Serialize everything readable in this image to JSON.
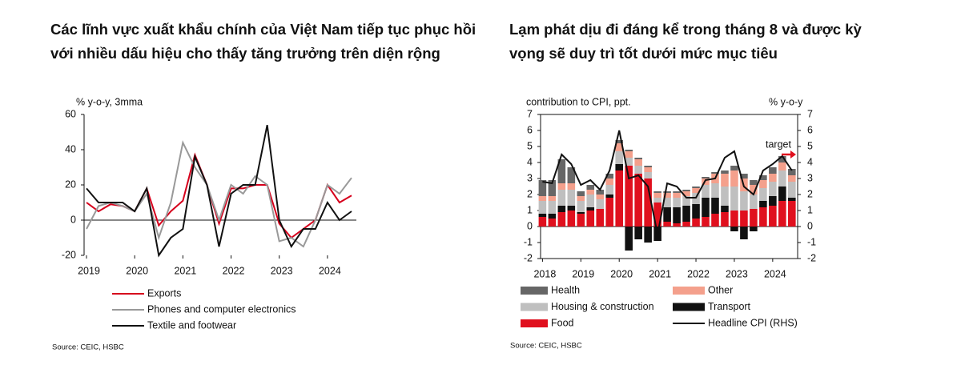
{
  "chart_data": [
    {
      "type": "line",
      "title": "Các lĩnh vực xuất khẩu chính của Việt Nam tiếp tục phục hồi với nhiều dấu hiệu cho thấy tăng trưởng trên diện rộng",
      "y_label": "% y-o-y, 3mma",
      "source": "Source: CEIC, HSBC",
      "x": [
        2019,
        2019.25,
        2019.5,
        2019.75,
        2020,
        2020.25,
        2020.5,
        2020.75,
        2021,
        2021.25,
        2021.5,
        2021.75,
        2022,
        2022.25,
        2022.5,
        2022.75,
        2023,
        2023.25,
        2023.5,
        2023.75,
        2024,
        2024.25,
        2024.5
      ],
      "xlim": [
        2018.95,
        2024.6
      ],
      "xticks": [
        2019,
        2020,
        2021,
        2022,
        2023,
        2024
      ],
      "ylim": [
        -20,
        60
      ],
      "yticks": [
        -20,
        0,
        20,
        40,
        60
      ],
      "series": [
        {
          "name": "Exports",
          "color": "#d6001c",
          "values": [
            10,
            5,
            9,
            8,
            5,
            18,
            -3,
            5,
            11,
            37,
            20,
            -2,
            18,
            18,
            20,
            20,
            -2,
            -10,
            -5,
            0,
            20,
            10,
            14
          ]
        },
        {
          "name": "Phones and computer electronics",
          "color": "#999999",
          "values": [
            -5,
            8,
            10,
            8,
            5,
            15,
            -10,
            10,
            44,
            30,
            20,
            0,
            20,
            15,
            25,
            20,
            -12,
            -10,
            -15,
            0,
            20,
            15,
            24
          ]
        },
        {
          "name": "Textile and footwear",
          "color": "#111111",
          "values": [
            18,
            10,
            10,
            10,
            5,
            18,
            -20,
            -10,
            -5,
            36,
            20,
            -15,
            15,
            20,
            20,
            54,
            0,
            -15,
            -5,
            -5,
            10,
            0,
            5
          ]
        }
      ]
    },
    {
      "type": "bar",
      "stacked": true,
      "title": "Lạm phát dịu đi đáng kể trong tháng 8 và được kỳ vọng sẽ duy trì tốt dưới mức mục tiêu",
      "y_label": "contribution to CPI, ppt.",
      "y2_label": "% y-o-y",
      "source": "Source: CEIC, HSBC",
      "x": [
        2018,
        2018.25,
        2018.5,
        2018.75,
        2019,
        2019.25,
        2019.5,
        2019.75,
        2020,
        2020.25,
        2020.5,
        2020.75,
        2021,
        2021.25,
        2021.5,
        2021.75,
        2022,
        2022.25,
        2022.5,
        2022.75,
        2023,
        2023.25,
        2023.5,
        2023.75,
        2024,
        2024.25,
        2024.5
      ],
      "xlim": [
        2017.95,
        2024.65
      ],
      "xticks": [
        2018,
        2019,
        2020,
        2021,
        2022,
        2023,
        2024
      ],
      "ylim": [
        -2,
        7
      ],
      "yticks": [
        -2,
        -1,
        0,
        1,
        2,
        3,
        4,
        5,
        6,
        7
      ],
      "y2lim": [
        -2,
        7
      ],
      "y2ticks": [
        -2,
        -1,
        0,
        1,
        2,
        3,
        4,
        5,
        6,
        7
      ],
      "annotation": {
        "text": "target",
        "value": 4.5,
        "color": "#e0101e"
      },
      "series": [
        {
          "name": "Health",
          "color": "#666666",
          "values": [
            1.0,
            1.0,
            1.5,
            1.0,
            0.3,
            0.3,
            0.3,
            0.3,
            0.2,
            0.1,
            0.1,
            0.1,
            0.1,
            0.1,
            0.1,
            0.1,
            0.1,
            0.1,
            0.1,
            0.2,
            0.3,
            0.3,
            0.3,
            0.3,
            0.4,
            0.4,
            0.4
          ]
        },
        {
          "name": "Other",
          "color": "#f4a08c",
          "values": [
            0.3,
            0.3,
            0.4,
            0.4,
            0.3,
            0.3,
            0.3,
            0.4,
            0.5,
            0.4,
            0.4,
            0.3,
            0.3,
            0.3,
            0.3,
            0.3,
            0.3,
            0.4,
            0.6,
            0.8,
            1.0,
            0.8,
            0.6,
            0.5,
            0.5,
            0.5,
            0.4
          ]
        },
        {
          "name": "Housing & construction",
          "color": "#bfbfbf",
          "values": [
            0.8,
            0.8,
            1.0,
            1.0,
            0.7,
            0.8,
            0.6,
            0.6,
            0.8,
            0.5,
            0.5,
            0.4,
            0.3,
            0.6,
            0.6,
            0.6,
            0.7,
            0.8,
            0.9,
            1.2,
            1.5,
            1.2,
            0.9,
            0.8,
            0.9,
            1.0,
            1.0
          ]
        },
        {
          "name": "Transport",
          "color": "#111111",
          "values": [
            0.2,
            0.3,
            0.4,
            0.3,
            0.1,
            0.2,
            0.0,
            0.2,
            0.4,
            -1.5,
            -0.8,
            -1.0,
            -0.9,
            0.9,
            1.0,
            1.0,
            0.9,
            1.2,
            1.0,
            0.4,
            -0.3,
            -0.8,
            -0.3,
            0.4,
            0.6,
            0.9,
            0.2
          ]
        },
        {
          "name": "Food",
          "color": "#e0101e",
          "values": [
            0.6,
            0.5,
            0.9,
            1.0,
            0.8,
            1.0,
            1.1,
            1.8,
            3.5,
            3.8,
            3.3,
            3.0,
            1.5,
            0.3,
            0.2,
            0.3,
            0.5,
            0.6,
            0.8,
            0.9,
            1.0,
            1.0,
            1.1,
            1.2,
            1.3,
            1.6,
            1.6
          ]
        },
        {
          "name": "Headline CPI (RHS)",
          "type": "line",
          "axis": "y2",
          "color": "#111111",
          "values": [
            2.8,
            2.7,
            4.5,
            3.9,
            2.6,
            2.9,
            2.3,
            3.5,
            6.0,
            3.0,
            3.2,
            2.5,
            -0.5,
            2.7,
            2.5,
            1.8,
            1.8,
            2.9,
            3.0,
            4.3,
            4.7,
            2.5,
            2.0,
            3.5,
            3.9,
            4.4,
            3.5
          ]
        }
      ]
    }
  ]
}
